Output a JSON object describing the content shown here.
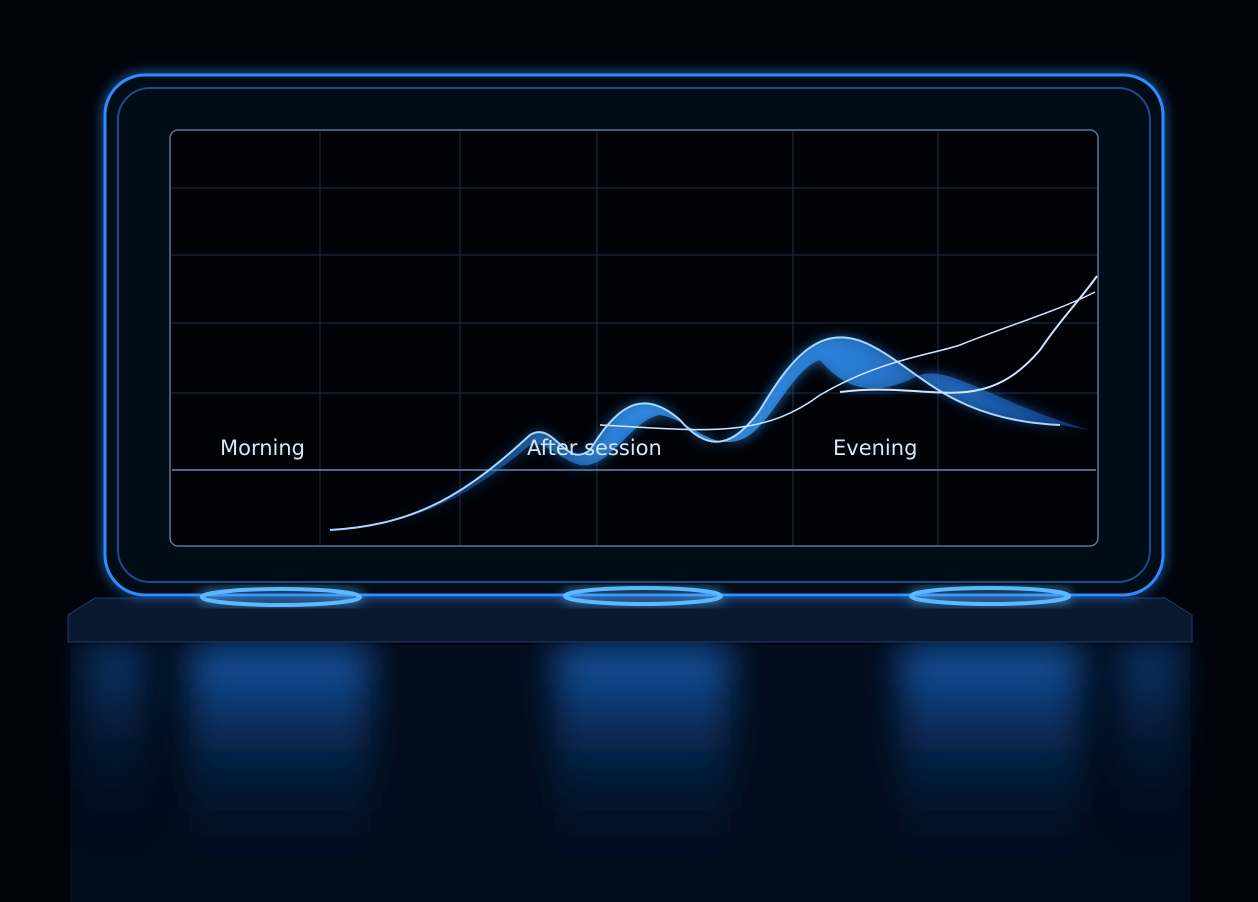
{
  "labels": [
    "Morning",
    "After session",
    "Evening"
  ]
}
